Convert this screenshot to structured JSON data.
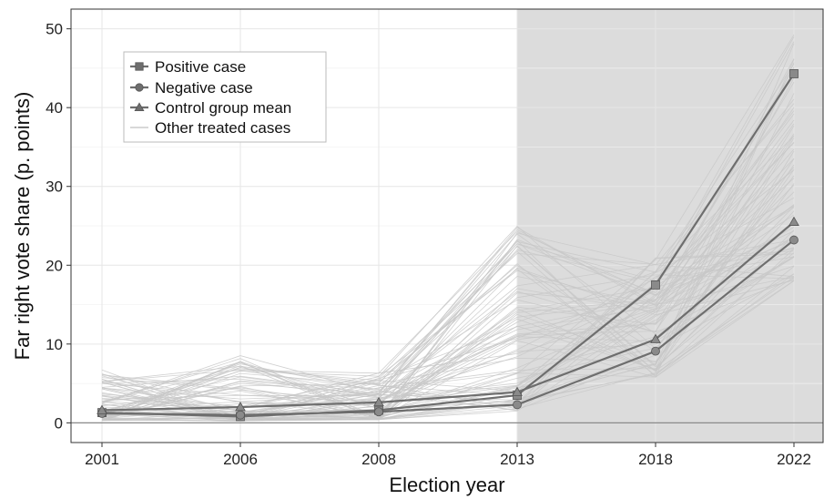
{
  "chart_data": {
    "type": "line",
    "xlabel": "Election year",
    "ylabel": "Far right vote share (p. points)",
    "categories": [
      "2001",
      "2006",
      "2008",
      "2013",
      "2018",
      "2022"
    ],
    "ylim": [
      -2.5,
      52.5
    ],
    "yticks": [
      0,
      10,
      20,
      30,
      40,
      50
    ],
    "grid": true,
    "legend_position": "top-left",
    "shaded_region": {
      "from": "2013",
      "to": "2022",
      "color": "#dcdcdc"
    },
    "series": [
      {
        "name": "Positive case",
        "marker": "square",
        "color": "#6e6e6e",
        "values": [
          1.3,
          0.8,
          1.6,
          3.5,
          17.5,
          44.3
        ]
      },
      {
        "name": "Negative case",
        "marker": "circle",
        "color": "#6e6e6e",
        "values": [
          1.2,
          1.0,
          1.4,
          2.3,
          9.1,
          23.2
        ]
      },
      {
        "name": "Control group mean",
        "marker": "triangle",
        "color": "#6e6e6e",
        "values": [
          1.6,
          2.0,
          2.6,
          3.9,
          10.6,
          25.5
        ]
      }
    ],
    "background_series": {
      "name": "Other treated cases",
      "color": "#c8c8c8",
      "count": 80,
      "value_ranges": [
        [
          0.3,
          6.8
        ],
        [
          0.2,
          9.2
        ],
        [
          0.4,
          6.4
        ],
        [
          1.5,
          25.8
        ],
        [
          5.8,
          21.0
        ],
        [
          18.0,
          49.5
        ]
      ]
    }
  }
}
